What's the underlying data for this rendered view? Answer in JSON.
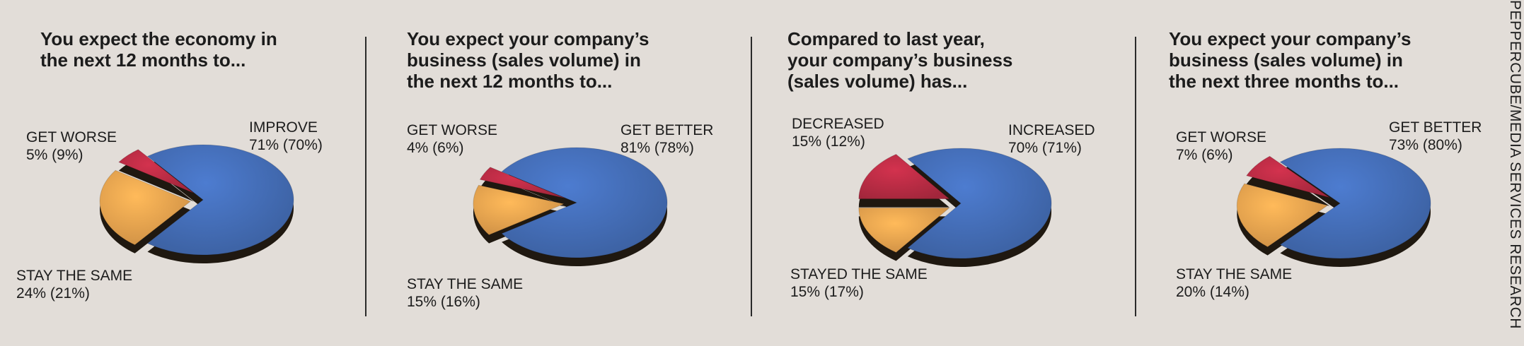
{
  "credit": "PEPPERCUBE/MEDIA SERVICES RESEARCH",
  "colors": {
    "blue": "#4169b0",
    "orange": "#e39e4c",
    "red": "#b32a42",
    "background": "#e2ddd8"
  },
  "chart_data": [
    {
      "type": "pie",
      "title": "You expect the economy in\nthe next 12 months to...",
      "slices": [
        {
          "label": "IMPROVE",
          "value": 71,
          "prior": 70,
          "text": "71% (70%)",
          "color": "#4169b0"
        },
        {
          "label": "STAY THE SAME",
          "value": 24,
          "prior": 21,
          "text": "24% (21%)",
          "color": "#e39e4c"
        },
        {
          "label": "GET WORSE",
          "value": 5,
          "prior": 9,
          "text": "5% (9%)",
          "color": "#b32a42"
        }
      ]
    },
    {
      "type": "pie",
      "title": "You expect your company’s\nbusiness (sales volume) in\nthe next 12 months to...",
      "slices": [
        {
          "label": "GET BETTER",
          "value": 81,
          "prior": 78,
          "text": "81% (78%)",
          "color": "#4169b0"
        },
        {
          "label": "STAY THE SAME",
          "value": 15,
          "prior": 16,
          "text": "15% (16%)",
          "color": "#e39e4c"
        },
        {
          "label": "GET WORSE",
          "value": 4,
          "prior": 6,
          "text": "4% (6%)",
          "color": "#b32a42"
        }
      ]
    },
    {
      "type": "pie",
      "title": "Compared to last year,\nyour company’s business\n(sales volume) has...",
      "slices": [
        {
          "label": "INCREASED",
          "value": 70,
          "prior": 71,
          "text": "70% (71%)",
          "color": "#4169b0"
        },
        {
          "label": "STAYED THE SAME",
          "value": 15,
          "prior": 17,
          "text": "15% (17%)",
          "color": "#e39e4c"
        },
        {
          "label": "DECREASED",
          "value": 15,
          "prior": 12,
          "text": "15% (12%)",
          "color": "#b32a42"
        }
      ]
    },
    {
      "type": "pie",
      "title": "You expect your company’s\nbusiness (sales volume) in\nthe next three months to...",
      "slices": [
        {
          "label": "GET BETTER",
          "value": 73,
          "prior": 80,
          "text": "73% (80%)",
          "color": "#4169b0"
        },
        {
          "label": "STAY THE SAME",
          "value": 20,
          "prior": 14,
          "text": "20% (14%)",
          "color": "#e39e4c"
        },
        {
          "label": "GET WORSE",
          "value": 7,
          "prior": 6,
          "text": "7% (6%)",
          "color": "#b32a42"
        }
      ]
    }
  ]
}
